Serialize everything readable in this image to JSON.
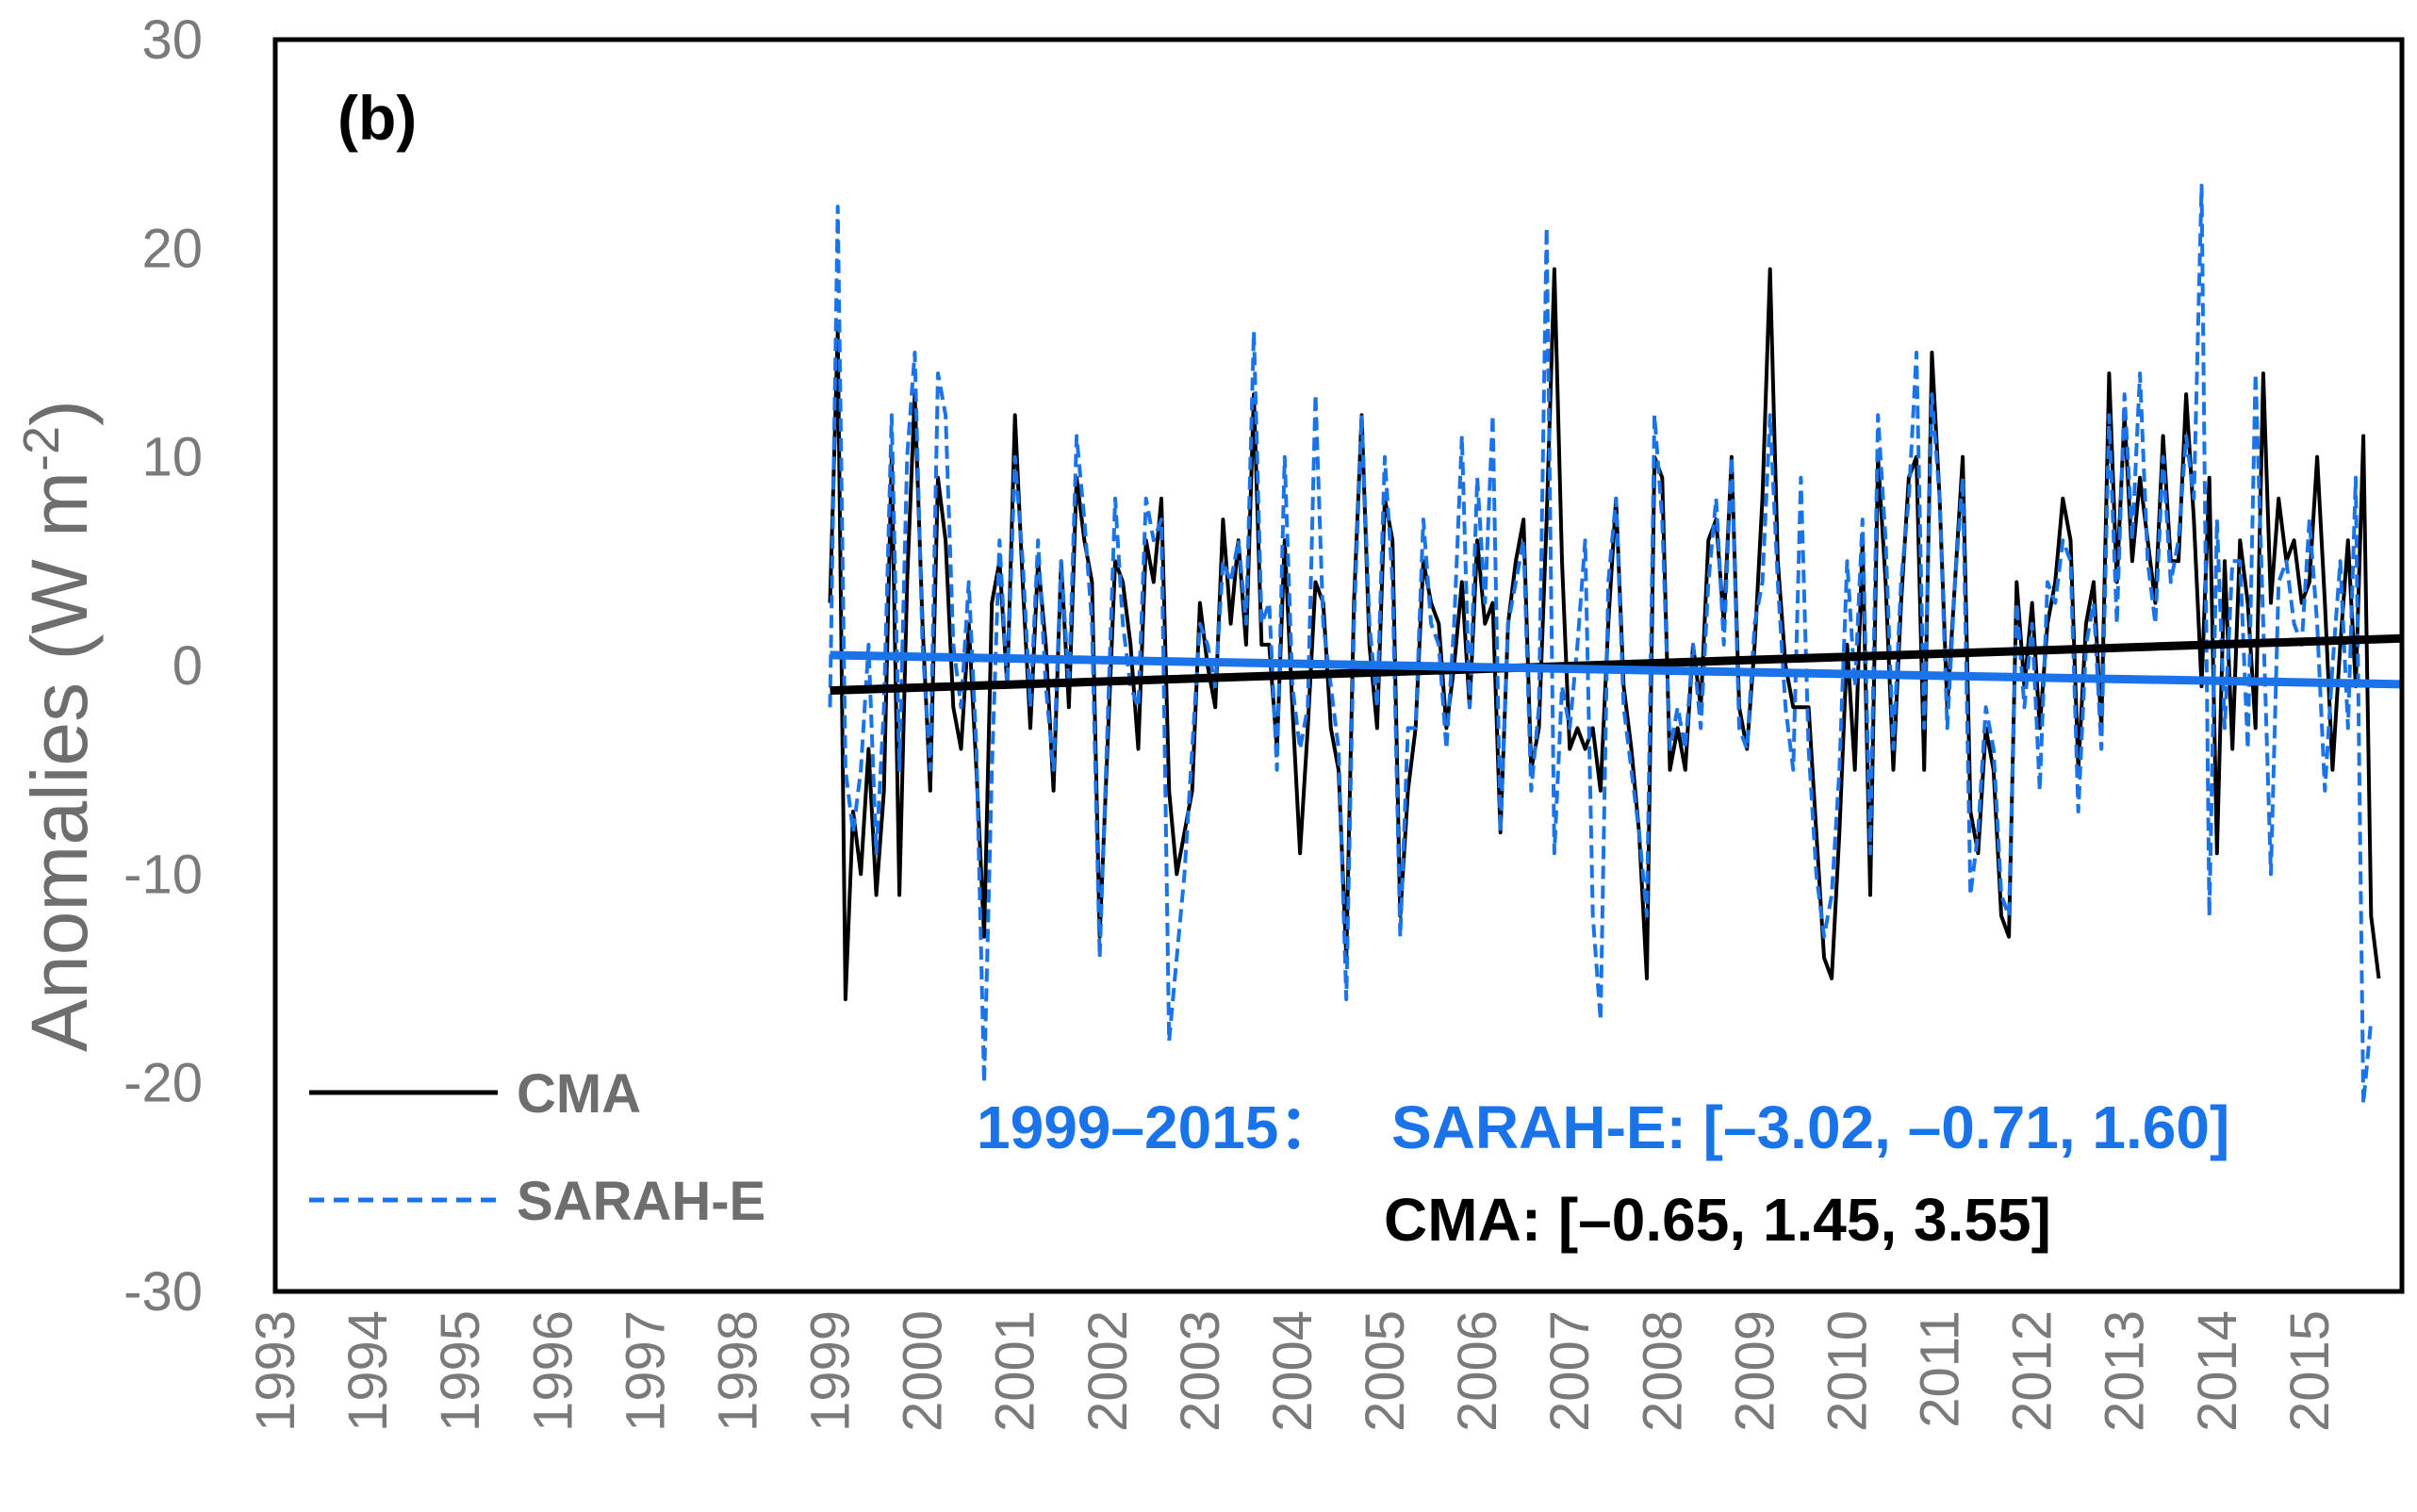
{
  "chart_data": {
    "type": "line",
    "panel_label": "(b)",
    "ylabel": "Anomalies (W m",
    "ylabel_sup": "-2",
    "ylabel_close": ")",
    "ylim": [
      -30,
      30
    ],
    "yticks": [
      30,
      20,
      10,
      0,
      -10,
      -20,
      -30
    ],
    "ytick_labels": [
      "30",
      "20",
      "10",
      "0",
      "-10",
      "-20",
      "-30"
    ],
    "xlim": [
      1993,
      2016
    ],
    "xtick_labels": [
      "1993",
      "1994",
      "1995",
      "1996",
      "1997",
      "1998",
      "1999",
      "2000",
      "2001",
      "2002",
      "2003",
      "2004",
      "2005",
      "2006",
      "2007",
      "2008",
      "2009",
      "2010",
      "2011",
      "2012",
      "2013",
      "2014",
      "2015"
    ],
    "series": [
      {
        "name": "CMA",
        "color": "#000000",
        "style": "solid",
        "start": 1999.0,
        "step": 0.0833333,
        "values": [
          3,
          16,
          -16,
          -7,
          -10,
          -4,
          -11,
          -6,
          10,
          -11,
          4,
          13,
          2,
          -6,
          9,
          6,
          -2,
          -4,
          2,
          -5,
          -13,
          3,
          5,
          -1,
          12,
          4,
          -3,
          5,
          1,
          -6,
          5,
          -2,
          9,
          6,
          4,
          -13,
          -4,
          5,
          4,
          1,
          -4,
          6,
          4,
          8,
          -6,
          -10,
          -8,
          -6,
          3,
          0,
          -2,
          7,
          2,
          6,
          1,
          13,
          1,
          1,
          -4,
          6,
          -2,
          -9,
          -3,
          4,
          3,
          -3,
          -5,
          -14,
          3,
          12,
          1,
          -3,
          8,
          6,
          -12,
          -6,
          -3,
          5,
          3,
          2,
          -3,
          0,
          4,
          -2,
          6,
          2,
          3,
          -8,
          2,
          5,
          7,
          -5,
          -3,
          7,
          19,
          5,
          -4,
          -3,
          -4,
          -3,
          -6,
          2,
          8,
          -1,
          -4,
          -8,
          -15,
          10,
          9,
          -5,
          -3,
          -5,
          1,
          -2,
          6,
          7,
          2,
          10,
          -2,
          -4,
          1,
          8,
          19,
          5,
          0,
          -2,
          -2,
          -2,
          -8,
          -14,
          -15,
          -8,
          1,
          -5,
          6,
          -11,
          10,
          4,
          -5,
          3,
          9,
          10,
          -5,
          15,
          8,
          -2,
          4,
          10,
          -7,
          -9,
          -3,
          -5,
          -12,
          -13,
          4,
          -1,
          3,
          -3,
          2,
          4,
          8,
          6,
          -5,
          2,
          4,
          -3,
          14,
          4,
          12,
          5,
          9,
          6,
          3,
          11,
          5,
          5,
          13,
          7,
          -1,
          9,
          -9,
          5,
          -4,
          6,
          3,
          -3,
          14,
          3,
          8,
          5,
          6,
          3,
          4,
          10,
          3,
          -5,
          1,
          6,
          -1,
          11,
          -12,
          -15
        ]
      },
      {
        "name": "SARAH-E",
        "color": "#1a73e8",
        "style": "dashed",
        "start": 1999.0,
        "step": 0.0833333,
        "values": [
          -2,
          22,
          -5,
          -8,
          -5,
          1,
          -9,
          -2,
          12,
          -5,
          10,
          15,
          1,
          -5,
          14,
          12,
          1,
          -2,
          4,
          -4,
          -20,
          -5,
          6,
          -1,
          10,
          5,
          -2,
          6,
          -1,
          -5,
          5,
          -1,
          11,
          7,
          2,
          -14,
          -3,
          8,
          2,
          -1,
          -2,
          8,
          6,
          7,
          -18,
          -14,
          -10,
          -4,
          2,
          1,
          -1,
          5,
          4,
          6,
          2,
          16,
          2,
          3,
          -5,
          10,
          -1,
          -4,
          -2,
          13,
          2,
          -1,
          -4,
          -16,
          2,
          12,
          2,
          -2,
          10,
          4,
          -13,
          -3,
          -3,
          7,
          2,
          1,
          -4,
          2,
          11,
          -2,
          9,
          3,
          12,
          -8,
          2,
          4,
          6,
          -6,
          -2,
          21,
          -9,
          -1,
          -3,
          1,
          6,
          -12,
          -17,
          4,
          8,
          -2,
          -5,
          -8,
          -12,
          12,
          7,
          -4,
          -2,
          -4,
          1,
          -3,
          4,
          8,
          1,
          10,
          -3,
          -4,
          2,
          4,
          12,
          4,
          -2,
          -5,
          9,
          -4,
          -10,
          -13,
          -11,
          -5,
          5,
          -1,
          7,
          -9,
          12,
          6,
          -4,
          4,
          8,
          15,
          -3,
          13,
          8,
          -3,
          4,
          9,
          -11,
          -8,
          -2,
          -4,
          -11,
          -12,
          3,
          -2,
          2,
          -6,
          4,
          3,
          6,
          5,
          -7,
          1,
          3,
          -4,
          12,
          2,
          13,
          6,
          14,
          5,
          2,
          10,
          4,
          6,
          11,
          8,
          23,
          -12,
          7,
          -3,
          5,
          5,
          -4,
          14,
          2,
          -10,
          4,
          5,
          2,
          1,
          7,
          2,
          -6,
          0,
          5,
          -3,
          9,
          -21,
          -17
        ]
      }
    ],
    "trendlines": [
      {
        "name": "CMA trend",
        "color": "#000000",
        "x": [
          1999.0,
          2016.0
        ],
        "y": [
          -1.2,
          1.3
        ]
      },
      {
        "name": "SARAH-E trend",
        "color": "#1a73e8",
        "x": [
          1999.0,
          2016.0
        ],
        "y": [
          0.5,
          -0.9
        ]
      }
    ],
    "legend": {
      "position": "bottom-left",
      "entries": [
        {
          "label": "CMA",
          "color": "#000000",
          "style": "solid"
        },
        {
          "label": "SARAH-E",
          "color": "#1a73e8",
          "style": "dashed"
        }
      ]
    },
    "annotations": {
      "period": "1999–2015：",
      "sarah": "SARAH-E: [–3.02, –0.71, 1.60]",
      "cma": "CMA: [–0.65, 1.45, 3.55]"
    }
  }
}
